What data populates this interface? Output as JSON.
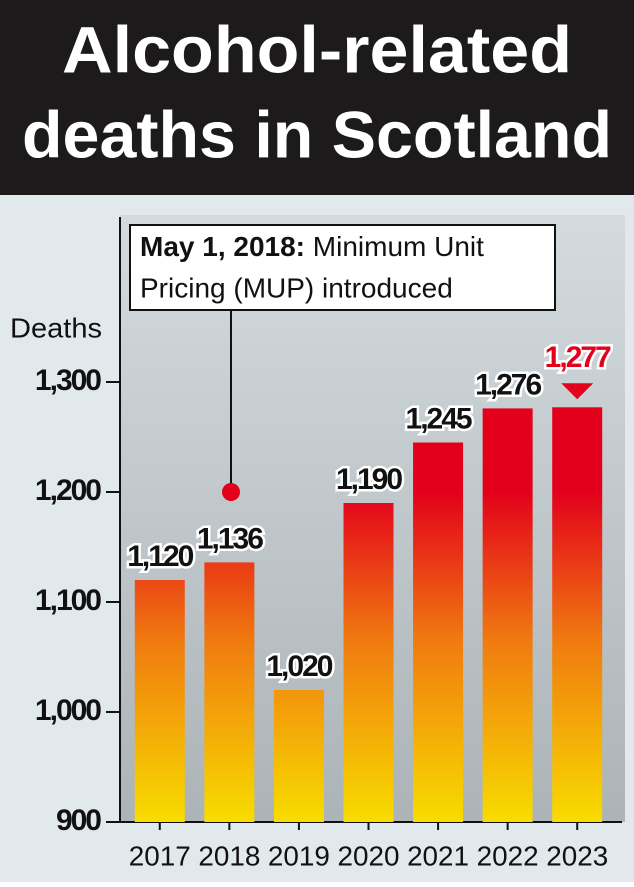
{
  "chart_data": {
    "type": "bar",
    "title": [
      "Alcohol-related",
      "deaths in Scotland"
    ],
    "y_label": "Deaths",
    "annotation": {
      "date": "May 1, 2018:",
      "lines": [
        "Minimum Unit",
        "Pricing (MUP) introduced"
      ]
    },
    "categories": [
      "2017",
      "2018",
      "2019",
      "2020",
      "2021",
      "2022",
      "2023"
    ],
    "values": [
      1120,
      1136,
      1020,
      1190,
      1245,
      1276,
      1277
    ],
    "value_labels": [
      "1,120",
      "1,136",
      "1,020",
      "1,190",
      "1,245",
      "1,276",
      "1,277"
    ],
    "label_colors": [
      "#111111",
      "#111111",
      "#111111",
      "#111111",
      "#111111",
      "#111111",
      "#e3001b"
    ],
    "colors": {
      "top": "#e3001b",
      "middle": "#f07a10",
      "bottom": "#f8dc00"
    },
    "ylim": [
      900,
      1450
    ],
    "yticks": [
      {
        "value": 900,
        "label": "900"
      },
      {
        "value": 1000,
        "label": "1,000"
      },
      {
        "value": 1100,
        "label": "1,100"
      },
      {
        "value": 1200,
        "label": "1,200"
      },
      {
        "value": 1300,
        "label": "1,300"
      }
    ],
    "grid": false
  }
}
